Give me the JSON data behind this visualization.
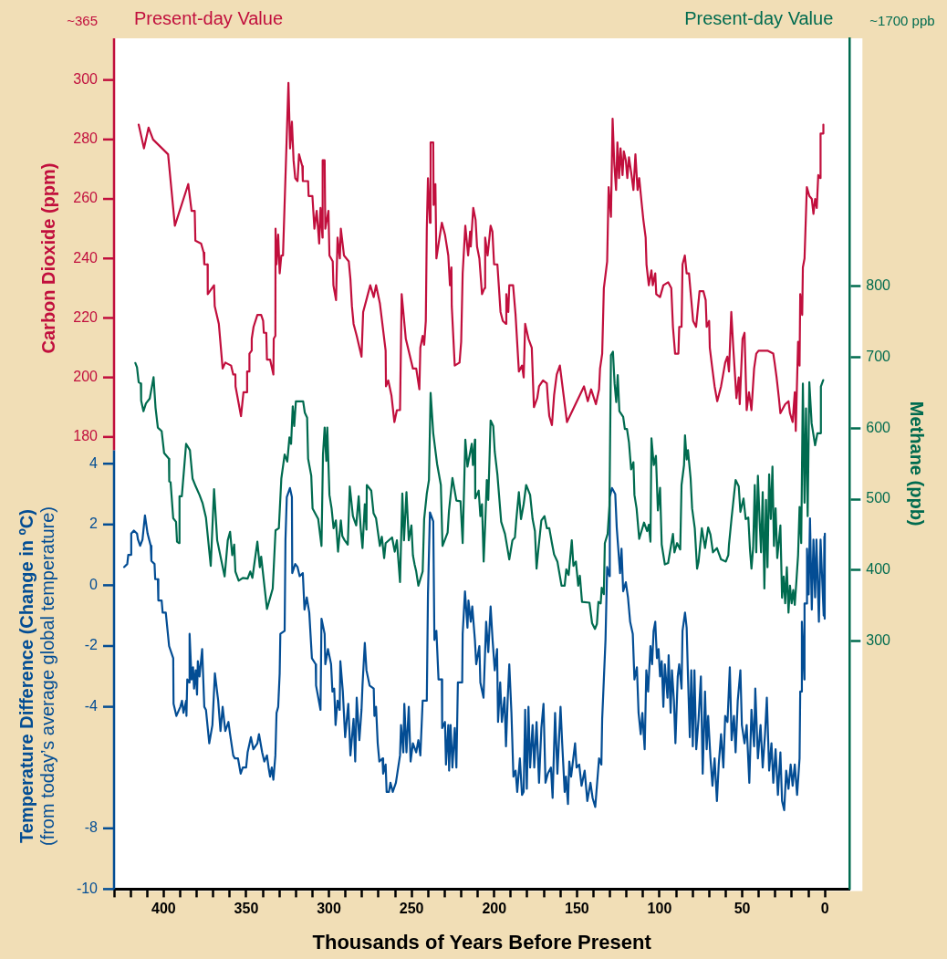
{
  "chart_data": {
    "type": "line",
    "xlabel": "Thousands of Years Before Present",
    "ylabel": "Carbon Dioxide (ppm)",
    "y2label": "Methane (ppb)",
    "y3label": "Temperature Difference (Change in ºC)\n(from today’s average global temperature)",
    "annotations": [
      "~365",
      "Present-day Value",
      "Present-day Value",
      "~1700 ppb"
    ],
    "xlim": [
      430,
      -15
    ],
    "xticks": [
      {
        "value": 430,
        "label": null
      },
      {
        "value": 420,
        "label": null
      },
      {
        "value": 410,
        "label": null
      },
      400,
      {
        "value": 390,
        "label": null
      },
      {
        "value": 380,
        "label": null
      },
      {
        "value": 370,
        "label": null
      },
      {
        "value": 360,
        "label": null
      },
      350,
      {
        "value": 340,
        "label": null
      },
      {
        "value": 330,
        "label": null
      },
      {
        "value": 320,
        "label": null
      },
      {
        "value": 310,
        "label": null
      },
      300,
      {
        "value": 290,
        "label": null
      },
      {
        "value": 280,
        "label": null
      },
      {
        "value": 270,
        "label": null
      },
      {
        "value": 260,
        "label": null
      },
      250,
      {
        "value": 240,
        "label": null
      },
      {
        "value": 230,
        "label": null
      },
      {
        "value": 220,
        "label": null
      },
      {
        "value": 210,
        "label": null
      },
      200,
      {
        "value": 190,
        "label": null
      },
      {
        "value": 180,
        "label": null
      },
      {
        "value": 170,
        "label": null
      },
      {
        "value": 160,
        "label": null
      },
      150,
      {
        "value": 140,
        "label": null
      },
      {
        "value": 130,
        "label": null
      },
      {
        "value": 120,
        "label": null
      },
      {
        "value": 110,
        "label": null
      },
      100,
      {
        "value": 90,
        "label": null
      },
      {
        "value": 80,
        "label": null
      },
      {
        "value": 70,
        "label": null
      },
      {
        "value": 60,
        "label": null
      },
      50,
      {
        "value": 40,
        "label": null
      },
      {
        "value": 30,
        "label": null
      },
      {
        "value": 20,
        "label": null
      },
      {
        "value": 10,
        "label": null
      },
      0
    ],
    "ylim": [
      28,
      314
    ],
    "yticks": [
      180,
      200,
      220,
      240,
      260,
      280,
      300
    ],
    "y2lim": [
      -50,
      1150
    ],
    "y2ticks": [
      300,
      400,
      500,
      600,
      700,
      800
    ],
    "y3lim": [
      -10,
      18
    ],
    "y3ticks": [
      4,
      2,
      0,
      -2,
      -4,
      -8,
      -10
    ],
    "series": [
      {
        "color": "#c10f3d",
        "axis": "y",
        "x": [
          415.1,
          411.9,
          409.1,
          406.4,
          397.3,
          393.2,
          385.1,
          383.1,
          381.2,
          380.8,
          377.3,
          375.8,
          375.4,
          373.4,
          373.3,
          369.5,
          369.1,
          366.6,
          364.3,
          362.7,
          359.2,
          357.9,
          356.6,
          356.5,
          353.2,
          351.7,
          349.6,
          349.5,
          348.2,
          348.1,
          346.8,
          346.7,
          345.6,
          343.3,
          341.0,
          339.8,
          339.4,
          337.9,
          337.5,
          335.6,
          333.6,
          333.4,
          332.4,
          332.3,
          331.7,
          330.7,
          329.8,
          328.8,
          327.8,
          324.5,
          323.5,
          322.4,
          321.4,
          320.4,
          319.0,
          318.1,
          316.1,
          315.8,
          312.6,
          312.3,
          310.0,
          308.8,
          307.4,
          305.9,
          305.1,
          303.9,
          303.8,
          302.6,
          302.2,
          300.3,
          299.7,
          297.7,
          297.3,
          295.7,
          294.8,
          293.4,
          292.8,
          290.9,
          288.0,
          287.0,
          286.1,
          285.1,
          283.2,
          280.3,
          279.3,
          276.9,
          275.0,
          272.9,
          271.5,
          269.2,
          265.7,
          265.5,
          264.1,
          262.2,
          260.4,
          258.9,
          257.0,
          256.0,
          253.5,
          249.2,
          247.2,
          245.3,
          244.7,
          243.3,
          242.4,
          241.4,
          240.8,
          240.1,
          238.9,
          238.5,
          236.9,
          236.7,
          235.6,
          235.0,
          233.1,
          231.7,
          229.8,
          227.8,
          226.8,
          225.9,
          225.7,
          223.9,
          221.0,
          220.0,
          219.1,
          217.5,
          215.8,
          214.6,
          214.2,
          212.7,
          211.3,
          210.4,
          209.0,
          207.4,
          205.9,
          205.5,
          204.0,
          202.2,
          201.1,
          200.1,
          198.1,
          196.2,
          194.8,
          192.9,
          192.7,
          191.5,
          190.9,
          188.6,
          187.1,
          185.1,
          183.2,
          182.2,
          181.3,
          179.3,
          177.3,
          176.0,
          174.0,
          172.9,
          170.5,
          168.2,
          167.6,
          166.7,
          165.1,
          163.8,
          162.2,
          160.3,
          156.0,
          145.7,
          143.4,
          141.4,
          138.5,
          136.6,
          136.0,
          134.7,
          133.7,
          131.7,
          130.8,
          129.4,
          128.4,
          127.4,
          126.3,
          125.5,
          124.5,
          123.6,
          122.4,
          121.6,
          120.4,
          119.5,
          118.5,
          117.2,
          115.8,
          114.6,
          113.3,
          112.3,
          110.9,
          109.8,
          108.4,
          107.9,
          106.5,
          104.9,
          104.1,
          102.6,
          102.0,
          99.7,
          97.7,
          94.8,
          92.9,
          91.9,
          90.6,
          88.6,
          88.1,
          86.7,
          86.1,
          84.7,
          83.6,
          82.2,
          79.7,
          77.9,
          75.8,
          73.5,
          72.1,
          71.5,
          70.0,
          69.6,
          68.3,
          66.7,
          65.1,
          62.8,
          60.3,
          59.0,
          58.0,
          56.6,
          55.4,
          54.5,
          53.5,
          52.1,
          51.5,
          49.8,
          48.6,
          47.3,
          45.9,
          44.4,
          42.8,
          41.5,
          40.1,
          34.7,
          31.2,
          30.4,
          29.2,
          27.8,
          26.9,
          24.0,
          22.0,
          21.1,
          19.5,
          18.2,
          17.6,
          16.2,
          15.3,
          14.9,
          13.7,
          13.3,
          12.3,
          10.9,
          9.4,
          7.9,
          6.9,
          5.9,
          4.9,
          4.0,
          2.8,
          2.6,
          1.0,
          0.9
        ],
        "values": [
          285,
          277,
          284,
          280,
          275,
          251,
          265,
          256,
          256,
          246,
          245,
          242,
          238,
          238,
          228,
          231,
          224,
          218,
          203,
          205,
          204,
          201,
          201,
          197,
          187,
          195,
          195,
          202,
          202,
          208,
          209,
          213,
          217,
          221,
          221,
          219,
          215,
          215,
          206,
          206,
          201,
          213,
          214,
          250,
          238,
          248,
          235,
          241,
          241,
          299,
          277,
          286,
          273,
          267,
          266,
          275,
          271,
          266,
          266,
          261,
          261,
          250,
          256,
          245,
          257,
          247,
          273,
          273,
          250,
          256,
          241,
          239,
          231,
          226,
          247,
          240,
          250,
          241,
          239,
          233,
          224,
          218,
          214,
          207,
          222,
          227,
          231,
          227,
          231,
          225,
          209,
          197,
          199,
          194,
          185,
          189,
          189,
          228,
          213,
          203,
          203,
          196,
          210,
          214,
          211,
          219,
          250,
          267,
          252,
          279,
          279,
          258,
          265,
          240,
          247,
          252,
          248,
          241,
          231,
          237,
          224,
          204,
          205,
          212,
          235,
          251,
          241,
          249,
          244,
          257,
          253,
          244,
          240,
          228,
          230,
          247,
          241,
          251,
          249,
          238,
          238,
          222,
          219,
          218,
          228,
          222,
          231,
          231,
          221,
          202,
          204,
          200,
          218,
          213,
          210,
          190,
          193,
          197,
          199,
          198,
          193,
          187,
          184,
          194,
          201,
          204,
          185,
          197,
          192,
          196,
          191,
          196,
          203,
          208,
          230,
          239,
          264,
          254,
          287,
          272,
          263,
          279,
          267,
          277,
          268,
          276,
          273,
          267,
          274,
          269,
          263,
          275,
          263,
          267,
          259,
          253,
          247,
          238,
          231,
          236,
          231,
          235,
          228,
          227,
          231,
          232,
          230,
          217,
          208,
          208,
          217,
          217,
          238,
          241,
          235,
          235,
          219,
          217,
          229,
          229,
          226,
          217,
          219,
          210,
          204,
          197,
          192,
          197,
          205,
          207,
          202,
          222,
          210,
          202,
          193,
          200,
          191,
          213,
          215,
          189,
          195,
          189,
          203,
          208,
          209,
          209,
          208,
          205,
          200,
          193,
          188,
          191,
          192,
          188,
          185,
          195,
          182,
          212,
          204,
          228,
          221,
          237,
          240,
          264,
          261,
          260,
          255,
          260,
          257,
          268,
          267,
          282,
          282,
          285
        ]
      },
      {
        "color": "#006b4f",
        "axis": "y2",
        "x": [
          417.1,
          416.1,
          415.1,
          413.8,
          413.6,
          412.2,
          410.7,
          408.4,
          406.1,
          404.9,
          403.5,
          401.2,
          399.7,
          396.8,
          396.6,
          395.8,
          394.2,
          392.5,
          391.9,
          390.6,
          390.4,
          389.0,
          386.4,
          384.1,
          382.5,
          380.6,
          378.3,
          376.4,
          374.4,
          371.5,
          369.5,
          367.6,
          363.1,
          361.2,
          359.8,
          358.5,
          357.3,
          356.6,
          354.6,
          352.1,
          349.2,
          347.6,
          346.3,
          343.3,
          341.8,
          341.0,
          337.5,
          334.0,
          332.3,
          330.3,
          328.8,
          326.8,
          325.2,
          323.9,
          322.9,
          321.9,
          321.0,
          320.0,
          315.6,
          314.6,
          313.2,
          312.6,
          310.7,
          309.9,
          306.5,
          304.5,
          303.6,
          302.6,
          301.6,
          301.0,
          299.7,
          298.4,
          297.2,
          295.8,
          294.5,
          292.8,
          291.9,
          290.5,
          288.6,
          287.4,
          285.5,
          283.5,
          282.0,
          280.8,
          279.7,
          278.3,
          277.3,
          277.1,
          274.4,
          273.0,
          271.5,
          269.2,
          268.0,
          266.6,
          265.7,
          261.8,
          260.2,
          258.9,
          257.0,
          255.6,
          254.6,
          253.1,
          251.7,
          250.1,
          249.2,
          248.2,
          247.2,
          245.9,
          243.3,
          242.4,
          240.8,
          239.5,
          238.5,
          236.9,
          234.6,
          232.3,
          231.3,
          228.2,
          227.4,
          225.3,
          222.9,
          220.4,
          219.1,
          217.5,
          216.2,
          213.6,
          212.9,
          211.7,
          211.5,
          209.4,
          208.4,
          207.4,
          206.4,
          205.5,
          204.5,
          203.6,
          202.2,
          200.6,
          199.7,
          198.1,
          195.8,
          193.5,
          190.9,
          189.0,
          187.5,
          186.7,
          185.1,
          183.8,
          182.2,
          180.7,
          178.3,
          176.8,
          175.4,
          174.4,
          173.5,
          171.5,
          169.6,
          168.2,
          166.7,
          165.1,
          163.8,
          161.8,
          159.3,
          157.4,
          156.4,
          155.0,
          153.1,
          152.1,
          150.6,
          149.2,
          148.2,
          146.9,
          142.4,
          140.8,
          139.1,
          137.9,
          137.0,
          135.6,
          135.0,
          133.7,
          133.1,
          131.4,
          130.3,
          129.4,
          128.2,
          127.2,
          126.2,
          125.3,
          124.3,
          122.0,
          121.0,
          119.7,
          118.5,
          117.2,
          115.8,
          115.2,
          113.9,
          112.3,
          109.4,
          107.5,
          106.5,
          105.5,
          104.9,
          103.5,
          102.2,
          101.0,
          99.7,
          98.7,
          96.8,
          94.8,
          91.9,
          91.0,
          89.4,
          87.5,
          86.7,
          85.2,
          84.6,
          83.6,
          82.8,
          81.2,
          80.3,
          78.7,
          77.3,
          76.4,
          74.4,
          72.5,
          70.6,
          69.2,
          67.7,
          65.3,
          62.8,
          59.9,
          58.4,
          58.0,
          56.4,
          54.0,
          52.1,
          51.1,
          49.2,
          47.9,
          46.3,
          45.3,
          44.4,
          43.4,
          42.4,
          41.5,
          40.5,
          39.5,
          38.6,
          37.6,
          36.6,
          35.6,
          34.7,
          33.7,
          32.7,
          31.7,
          30.8,
          29.8,
          28.8,
          26.9,
          25.9,
          24.9,
          24.0,
          23.0,
          22.0,
          21.1,
          20.1,
          19.1,
          18.2,
          17.2,
          16.2,
          15.3,
          14.3,
          13.3,
          12.3,
          11.4,
          10.4,
          9.4,
          8.0,
          5.9,
          4.5,
          2.6,
          2.4,
          1.0
        ],
        "values": [
          692,
          686,
          665,
          663,
          639,
          624,
          635,
          642,
          672,
          629,
          601,
          596,
          565,
          557,
          525,
          524,
          473,
          468,
          440,
          438,
          504,
          504,
          578,
          569,
          529,
          518,
          506,
          494,
          474,
          406,
          514,
          442,
          391,
          442,
          454,
          421,
          436,
          398,
          385,
          389,
          388,
          398,
          389,
          440,
          404,
          419,
          345,
          374,
          456,
          459,
          529,
          563,
          553,
          587,
          578,
          631,
          603,
          638,
          638,
          622,
          615,
          557,
          533,
          487,
          472,
          434,
          563,
          601,
          554,
          601,
          506,
          487,
          459,
          470,
          426,
          470,
          448,
          442,
          436,
          518,
          476,
          463,
          504,
          459,
          431,
          493,
          457,
          520,
          512,
          480,
          473,
          434,
          447,
          417,
          438,
          446,
          426,
          442,
          383,
          508,
          442,
          510,
          442,
          463,
          421,
          408,
          398,
          378,
          398,
          472,
          508,
          527,
          650,
          593,
          550,
          520,
          434,
          453,
          483,
          530,
          498,
          497,
          438,
          584,
          546,
          578,
          548,
          584,
          501,
          512,
          476,
          493,
          412,
          463,
          527,
          499,
          611,
          603,
          567,
          535,
          468,
          451,
          415,
          442,
          446,
          470,
          510,
          472,
          493,
          520,
          506,
          472,
          455,
          402,
          425,
          470,
          476,
          459,
          459,
          438,
          422,
          412,
          378,
          378,
          401,
          393,
          442,
          406,
          412,
          378,
          392,
          355,
          354,
          325,
          317,
          324,
          355,
          353,
          375,
          366,
          438,
          451,
          491,
          703,
          708,
          663,
          637,
          675,
          624,
          616,
          599,
          599,
          580,
          542,
          552,
          506,
          487,
          444,
          467,
          455,
          464,
          440,
          586,
          548,
          561,
          484,
          516,
          436,
          408,
          410,
          451,
          425,
          438,
          429,
          520,
          548,
          590,
          556,
          569,
          529,
          487,
          459,
          402,
          412,
          459,
          431,
          460,
          450,
          425,
          431,
          415,
          412,
          421,
          436,
          474,
          527,
          518,
          482,
          501,
          472,
          474,
          429,
          402,
          431,
          520,
          425,
          533,
          472,
          425,
          510,
          374,
          499,
          404,
          535,
          472,
          546,
          434,
          487,
          417,
          463,
          361,
          391,
          353,
          404,
          340,
          378,
          353,
          372,
          351,
          385,
          421,
          489,
          438,
          663,
          495,
          628,
          476,
          665,
          607,
          576,
          593,
          593,
          659,
          668
        ]
      },
      {
        "color": "#034d94",
        "axis": "y3",
        "x": [
          423.9,
          422.0,
          421.4,
          420.0,
          419.6,
          418.0,
          416.1,
          415.5,
          414.2,
          412.8,
          411.3,
          409.7,
          407.8,
          407.4,
          405.5,
          405.1,
          403.5,
          403.2,
          401.2,
          400.6,
          398.7,
          396.7,
          394.2,
          394.0,
          392.3,
          389.9,
          388.9,
          388.0,
          386.4,
          386.2,
          385.7,
          384.5,
          384.3,
          383.1,
          382.2,
          381.6,
          380.6,
          379.8,
          379.3,
          378.3,
          376.7,
          375.4,
          374.4,
          372.4,
          370.5,
          369.0,
          367.0,
          365.6,
          364.3,
          362.7,
          360.8,
          359.8,
          357.9,
          356.9,
          355.0,
          353.4,
          352.1,
          350.1,
          349.2,
          347.2,
          345.7,
          343.3,
          342.3,
          340.4,
          339.1,
          337.5,
          336.5,
          335.6,
          334.6,
          333.6,
          332.4,
          331.7,
          330.7,
          329.8,
          329.4,
          326.8,
          326.3,
          325.5,
          323.6,
          322.4,
          322.2,
          320.4,
          319.0,
          317.7,
          315.8,
          314.8,
          313.4,
          311.9,
          310.3,
          308.0,
          307.8,
          305.1,
          304.5,
          302.6,
          302.2,
          300.6,
          298.7,
          297.9,
          296.8,
          296.0,
          294.8,
          293.5,
          293.1,
          291.6,
          290.2,
          288.3,
          287.0,
          285.1,
          284.1,
          283.2,
          281.6,
          280.3,
          279.7,
          278.3,
          277.3,
          275.4,
          272.9,
          272.5,
          271.5,
          270.5,
          269.5,
          267.6,
          267.2,
          265.7,
          265.1,
          263.7,
          262.8,
          261.4,
          259.5,
          257.0,
          256.4,
          255.0,
          254.4,
          253.1,
          251.7,
          250.6,
          249.2,
          247.2,
          245.9,
          244.7,
          243.3,
          240.8,
          240.1,
          238.9,
          236.9,
          236.2,
          235.0,
          233.7,
          231.7,
          231.5,
          229.8,
          229.2,
          227.8,
          227.3,
          226.4,
          225.3,
          223.9,
          222.9,
          222.0,
          219.4,
          219.1,
          217.7,
          216.2,
          215.6,
          214.2,
          213.3,
          211.7,
          210.9,
          209.0,
          208.4,
          206.5,
          204.9,
          203.6,
          202.2,
          201.0,
          199.7,
          198.3,
          197.7,
          196.4,
          195.4,
          193.8,
          192.9,
          191.9,
          190.9,
          189.6,
          188.4,
          187.1,
          186.1,
          184.5,
          183.2,
          182.2,
          181.3,
          180.3,
          179.3,
          178.3,
          176.8,
          175.8,
          174.4,
          172.9,
          171.5,
          170.2,
          169.0,
          167.6,
          165.7,
          164.7,
          163.2,
          161.8,
          159.9,
          158.9,
          157.4,
          156.6,
          155.4,
          154.6,
          153.5,
          151.1,
          150.2,
          148.6,
          147.2,
          145.3,
          143.7,
          141.8,
          140.5,
          138.9,
          136.6,
          135.2,
          134.7,
          132.7,
          131.7,
          130.3,
          130.1,
          128.8,
          126.8,
          125.9,
          123.9,
          123.0,
          122.0,
          120.4,
          119.1,
          117.8,
          116.2,
          115.2,
          113.7,
          112.7,
          111.4,
          110.4,
          109.0,
          108.0,
          106.9,
          105.5,
          104.5,
          103.6,
          102.6,
          101.6,
          100.6,
          99.7,
          98.7,
          97.7,
          96.8,
          95.2,
          94.5,
          93.3,
          92.5,
          91.3,
          90.4,
          89.0,
          88.1,
          86.7,
          86.1,
          84.6,
          83.6,
          82.8,
          81.7,
          80.8,
          79.9,
          78.9,
          77.8,
          76.4,
          75.0,
          73.9,
          72.5,
          71.5,
          70.6,
          69.2,
          68.0,
          66.7,
          65.3,
          64.2,
          62.8,
          61.4,
          60.3,
          58.9,
          57.5,
          56.4,
          55.0,
          54.0,
          52.7,
          51.1,
          50.2,
          48.6,
          47.3,
          45.7,
          44.4,
          42.8,
          42.1,
          40.5,
          38.9,
          37.6,
          36.2,
          35.1,
          33.7,
          32.3,
          31.2,
          29.8,
          28.4,
          26.9,
          25.9,
          24.6,
          23.4,
          22.0,
          20.7,
          19.5,
          18.2,
          16.8,
          15.3,
          14.9,
          14.3,
          13.9,
          12.4,
          12.3,
          10.9,
          10.8,
          9.8,
          9.0,
          7.9,
          6.9,
          5.9,
          5.1,
          3.6,
          2.6,
          0.7,
          0.3,
          0.1,
          0
        ],
        "values": [
          0.6,
          0.7,
          1.0,
          1.0,
          1.7,
          1.8,
          1.7,
          1.5,
          1.3,
          1.5,
          2.3,
          1.7,
          1.3,
          0.8,
          0.7,
          0.2,
          0.2,
          -0.5,
          -0.5,
          -0.9,
          -0.9,
          -2.0,
          -2.4,
          -3.9,
          -4.3,
          -4.0,
          -3.8,
          -4.2,
          -3.8,
          -4.3,
          -3.1,
          -3.2,
          -1.6,
          -3.1,
          -2.7,
          -3.4,
          -2.8,
          -3.6,
          -2.5,
          -3.0,
          -2.1,
          -4.0,
          -4.1,
          -5.2,
          -4.6,
          -2.9,
          -3.8,
          -4.8,
          -4.0,
          -4.8,
          -4.5,
          -4.9,
          -5.6,
          -5.7,
          -5.7,
          -6.2,
          -6.0,
          -6.0,
          -5.5,
          -5.0,
          -5.4,
          -5.2,
          -4.9,
          -5.5,
          -5.8,
          -5.6,
          -6.0,
          -6.3,
          -6.0,
          -6.4,
          -5.6,
          -4.2,
          -4.0,
          -2.9,
          -1.6,
          -1.5,
          1.5,
          2.9,
          3.2,
          2.9,
          0.4,
          0.7,
          0.6,
          0.3,
          0.4,
          -0.8,
          -0.4,
          -0.9,
          -2.4,
          -2.6,
          -3.3,
          -4.1,
          -1.1,
          -1.6,
          -2.6,
          -2.1,
          -2.6,
          -3.5,
          -3.4,
          -4.6,
          -3.8,
          -4.1,
          -2.5,
          -3.5,
          -5.0,
          -3.9,
          -5.6,
          -4.4,
          -5.8,
          -3.7,
          -5.1,
          -4.1,
          -3.3,
          -1.9,
          -2.8,
          -3.3,
          -3.4,
          -4.3,
          -4.0,
          -5.2,
          -5.8,
          -5.7,
          -6.2,
          -5.9,
          -6.8,
          -6.8,
          -6.5,
          -6.8,
          -6.5,
          -5.6,
          -4.6,
          -5.5,
          -3.9,
          -5.5,
          -4.0,
          -5.8,
          -5.2,
          -5.5,
          -5.1,
          -5.6,
          -3.8,
          -3.8,
          -0.3,
          2.4,
          2.1,
          -1.8,
          -1.5,
          -3.1,
          -3.1,
          -4.7,
          -4.5,
          -5.9,
          -4.6,
          -6.1,
          -4.6,
          -6.0,
          -4.7,
          -6.0,
          -3.2,
          -3.2,
          -1.6,
          -0.2,
          -1.4,
          -0.5,
          -1.2,
          -0.7,
          -1.8,
          -2.6,
          -2.0,
          -3.2,
          -3.7,
          -1.2,
          -2.2,
          -0.7,
          -1.8,
          -2.8,
          -2.1,
          -4.5,
          -3.2,
          -4.5,
          -3.7,
          -5.3,
          -3.8,
          -2.6,
          -4.2,
          -6.3,
          -6.1,
          -6.8,
          -5.7,
          -6.9,
          -6.8,
          -4.1,
          -6.7,
          -4.0,
          -6.0,
          -4.6,
          -6.0,
          -4.5,
          -6.5,
          -4.7,
          -3.9,
          -6.5,
          -6.2,
          -6.0,
          -7.0,
          -4.2,
          -6.2,
          -4.0,
          -5.2,
          -6.8,
          -6.3,
          -7.2,
          -5.8,
          -6.3,
          -5.2,
          -6.0,
          -5.9,
          -6.6,
          -6.1,
          -7.1,
          -6.5,
          -7.0,
          -7.3,
          -5.7,
          -5.9,
          -4.4,
          -1.8,
          0.6,
          0.3,
          2.9,
          3.2,
          3.0,
          1.9,
          0.4,
          1.2,
          -0.2,
          0.1,
          -0.4,
          -1.2,
          -1.6,
          -3.1,
          -2.7,
          -4.2,
          -4.9,
          -4.2,
          -5.4,
          -2.8,
          -3.5,
          -2.0,
          -2.6,
          -1.5,
          -1.2,
          -2.4,
          -2.1,
          -3.0,
          -2.5,
          -4.0,
          -2.6,
          -3.7,
          -2.3,
          -4.2,
          -2.8,
          -3.8,
          -5.2,
          -3.0,
          -2.6,
          -3.4,
          -1.5,
          -0.9,
          -1.4,
          -3.0,
          -5.0,
          -2.8,
          -5.3,
          -2.8,
          -5.4,
          -4.4,
          -3.0,
          -6.2,
          -3.5,
          -5.4,
          -4.3,
          -5.7,
          -6.6,
          -5.7,
          -7.1,
          -5.9,
          -4.9,
          -6.0,
          -4.3,
          -4.5,
          -2.7,
          -5.1,
          -4.3,
          -5.5,
          -3.8,
          -2.8,
          -4.6,
          -5.2,
          -4.6,
          -6.5,
          -4.1,
          -5.3,
          -3.4,
          -5.7,
          -4.6,
          -6.0,
          -4.9,
          -3.7,
          -6.1,
          -5.2,
          -6.5,
          -5.4,
          -6.9,
          -5.5,
          -7.1,
          -7.4,
          -6.1,
          -6.7,
          -5.9,
          -6.6,
          -5.9,
          -6.9,
          -5.7,
          -3.5,
          -3.5,
          -1.2,
          -3.1,
          -0.6,
          -0.6,
          1.2,
          -0.3,
          2.2,
          -0.8,
          1.5,
          -0.4,
          1.5,
          -1.2,
          1.5,
          -1.0,
          1.6,
          -1.1,
          1.7
        ]
      }
    ]
  }
}
